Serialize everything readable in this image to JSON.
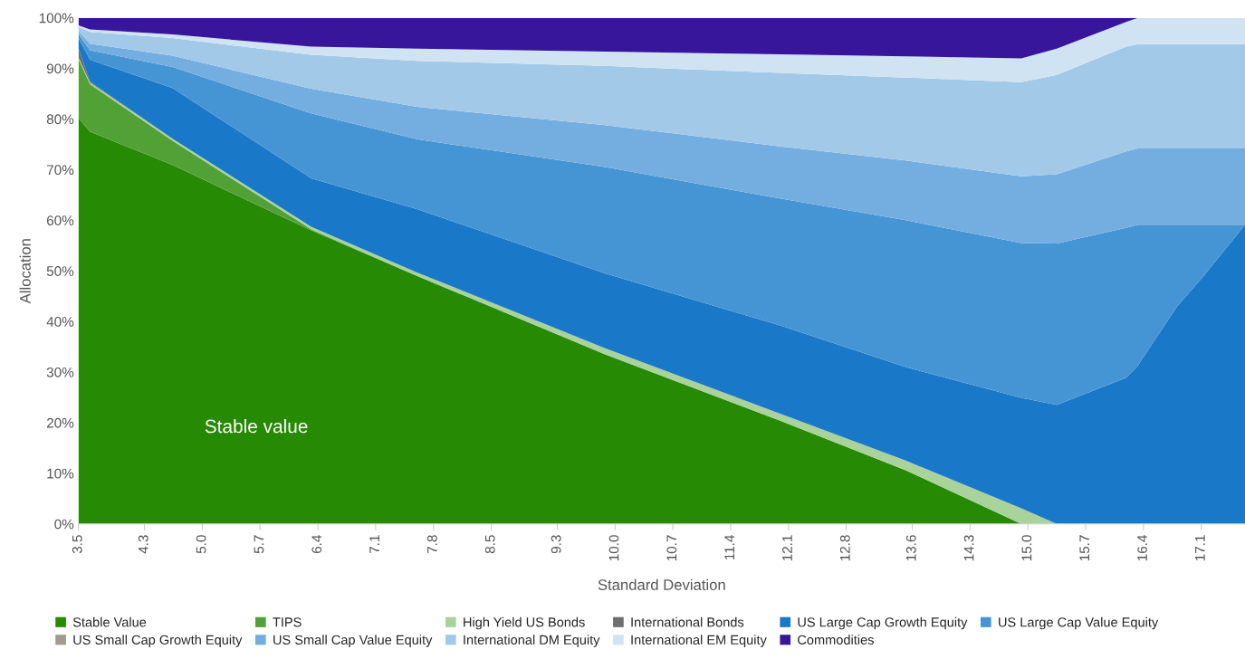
{
  "chart_data": {
    "type": "area",
    "stacked": true,
    "xlabel": "Standard Deviation",
    "ylabel": "Allocation",
    "x": [
      3.5,
      3.64,
      4.64,
      6.32,
      7.6,
      9.88,
      12.0,
      13.52,
      14.92,
      15.35,
      16.19,
      16.33,
      16.51,
      16.81,
      17.13,
      17.63
    ],
    "xlim": [
      3.5,
      17.63
    ],
    "xticks": [
      3.5,
      4.3,
      {
        "value": 5.0,
        "label": "5.0"
      },
      5.7,
      6.4,
      7.1,
      7.8,
      8.5,
      9.3,
      {
        "value": 10.0,
        "label": "10.0"
      },
      10.7,
      11.4,
      12.1,
      12.8,
      13.6,
      14.3,
      {
        "value": 15.0,
        "label": "15.0"
      },
      15.7,
      16.4,
      17.1
    ],
    "ylim": [
      0,
      100
    ],
    "yticks": [
      {
        "value": 0,
        "label": "0%"
      },
      {
        "value": 10,
        "label": "10%"
      },
      {
        "value": 20,
        "label": "20%"
      },
      {
        "value": 30,
        "label": "30%"
      },
      {
        "value": 40,
        "label": "40%"
      },
      {
        "value": 50,
        "label": "50%"
      },
      {
        "value": 60,
        "label": "60%"
      },
      {
        "value": 70,
        "label": "70%"
      },
      {
        "value": 80,
        "label": "80%"
      },
      {
        "value": 90,
        "label": "90%"
      },
      {
        "value": 100,
        "label": "100%"
      }
    ],
    "grid": false,
    "legend": "bottom",
    "annotations": [
      "Stable value"
    ],
    "series": [
      {
        "name": "Stable Value",
        "color": "#278a05",
        "values": [
          80.2,
          77.5,
          70.9,
          58.0,
          49.0,
          33.5,
          20.4,
          10.6,
          0,
          0,
          0,
          0,
          0,
          0,
          0,
          0
        ]
      },
      {
        "name": "TIPS",
        "color": "#52a137",
        "values": [
          11.7,
          9.4,
          4.8,
          0.2,
          0,
          0,
          0,
          0,
          0,
          0,
          0,
          0,
          0,
          0,
          0,
          0
        ]
      },
      {
        "name": "High Yield US Bonds",
        "color": "#a9d39a",
        "values": [
          0.3,
          0.3,
          0.4,
          0.5,
          0.7,
          1.2,
          1.4,
          1.9,
          3.1,
          0,
          0,
          0,
          0,
          0,
          0,
          0
        ]
      },
      {
        "name": "International Bonds",
        "color": "#6e6e6e",
        "values": [
          1.8,
          0.2,
          0,
          0,
          0,
          0,
          0,
          0,
          0,
          0,
          0,
          0,
          0,
          0,
          0,
          0
        ]
      },
      {
        "name": "US Large Cap Growth Equity",
        "color": "#1a78c9",
        "values": [
          2.0,
          4.3,
          10.0,
          9.6,
          12.5,
          14.8,
          17.4,
          18.5,
          21.8,
          23.5,
          28.9,
          31.2,
          35.7,
          43.0,
          49.0,
          59.1
        ]
      },
      {
        "name": "US Large Cap Value Equity",
        "color": "#4595d5",
        "values": [
          0.8,
          1.9,
          4.2,
          12.8,
          13.8,
          21.0,
          25.1,
          29.0,
          30.6,
          31.9,
          29.6,
          27.9,
          23.4,
          16.1,
          10.1,
          0
        ]
      },
      {
        "name": "US Small Cap Growth Equity",
        "color": "#a09a90",
        "values": [
          0.2,
          0,
          0,
          0,
          0,
          0,
          0,
          0,
          0,
          0,
          0,
          0,
          0,
          0,
          0,
          0
        ]
      },
      {
        "name": "US Small Cap Value Equity",
        "color": "#74aee0",
        "values": [
          0.4,
          1.3,
          2.2,
          4.9,
          6.4,
          8.3,
          10.3,
          11.8,
          13.2,
          13.7,
          15.1,
          15.1,
          15.1,
          15.1,
          15.1,
          15.1
        ]
      },
      {
        "name": "International DM Equity",
        "color": "#a3c9e9",
        "values": [
          0.8,
          2.3,
          3.5,
          6.7,
          9.1,
          11.7,
          14.5,
          16.4,
          18.6,
          19.6,
          20.7,
          20.6,
          20.6,
          20.6,
          20.6,
          20.6
        ]
      },
      {
        "name": "International EM Equity",
        "color": "#d0e3f3",
        "values": [
          0.3,
          0.5,
          0.7,
          1.6,
          2.4,
          2.8,
          3.7,
          4.2,
          4.7,
          5.2,
          4.9,
          5.2,
          5.2,
          5.2,
          5.2,
          5.2
        ]
      },
      {
        "name": "Commodities",
        "color": "#37169c",
        "values": [
          1.5,
          2.3,
          3.3,
          5.7,
          6.1,
          6.7,
          7.2,
          7.6,
          8.0,
          6.1,
          0.8,
          0,
          0,
          0,
          0,
          0
        ]
      }
    ]
  }
}
